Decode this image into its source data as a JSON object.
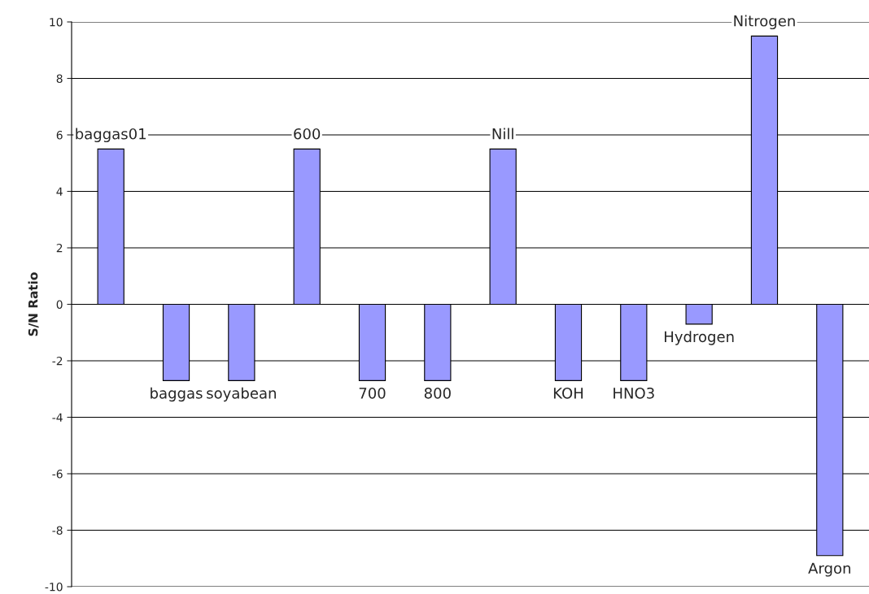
{
  "chart_data": {
    "type": "bar",
    "ylabel": "S/N Ratio",
    "categories": [
      "baggas01",
      "baggas",
      "soyabean",
      "600",
      "700",
      "800",
      "Nill",
      "KOH",
      "HNO3",
      "Hydrogen",
      "Nitrogen",
      "Argon"
    ],
    "values": [
      5.5,
      -2.7,
      -2.7,
      5.5,
      -2.7,
      -2.7,
      5.5,
      -2.7,
      -2.7,
      -0.7,
      9.5,
      -8.9
    ],
    "color": "#9999ff",
    "ylim": [
      -10,
      10
    ],
    "yticks": [
      -10,
      -8,
      -6,
      -4,
      -2,
      0,
      2,
      4,
      6,
      8,
      10
    ],
    "grid": "y",
    "tick_labels": "y"
  }
}
